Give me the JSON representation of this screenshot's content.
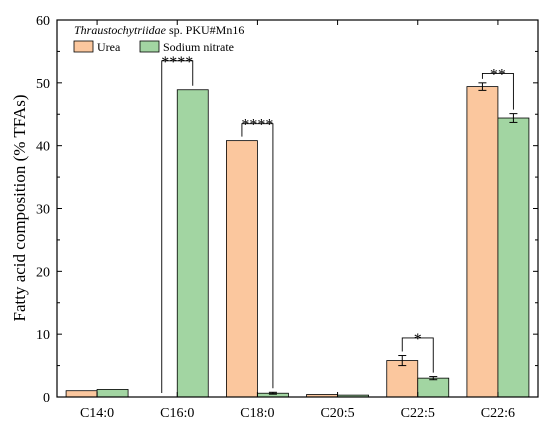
{
  "chart_data": {
    "type": "bar",
    "title": "",
    "legend_title_italic": "Thraustochytriidae",
    "legend_title_rest": " sp. PKU#Mn16",
    "legend_position": "top-left",
    "xlabel": "",
    "ylabel": "Fatty acid composition (% TFAs)",
    "ylim": [
      0,
      60
    ],
    "yticks": [
      0,
      10,
      20,
      30,
      40,
      50,
      60
    ],
    "grid": false,
    "categories": [
      "C14:0",
      "C16:0",
      "C18:0",
      "C20:5",
      "C22:5",
      "C22:6"
    ],
    "series": [
      {
        "name": "Urea",
        "color": "#fbc79e",
        "values": [
          1.0,
          0.0,
          40.8,
          0.4,
          5.8,
          49.4
        ],
        "errors": [
          0,
          0,
          0,
          0,
          0.8,
          0.6
        ]
      },
      {
        "name": "Sodium nitrate",
        "color": "#a2d5a2",
        "values": [
          1.2,
          48.9,
          0.6,
          0.3,
          3.0,
          44.4
        ],
        "errors": [
          0,
          0,
          0.15,
          0,
          0.25,
          0.7
        ]
      }
    ],
    "significance": [
      {
        "category_index": 1,
        "label": "****",
        "top": 53.5
      },
      {
        "category_index": 2,
        "label": "****",
        "top": 43.5
      },
      {
        "category_index": 4,
        "label": "*",
        "top": 9.4
      },
      {
        "category_index": 5,
        "label": "**",
        "top": 51.5
      }
    ]
  }
}
